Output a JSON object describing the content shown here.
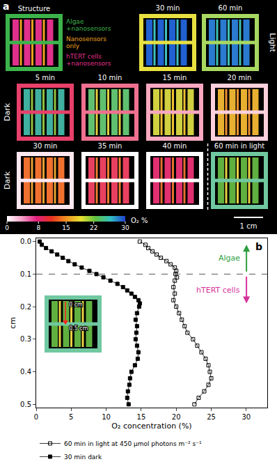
{
  "panel_a": {
    "label": "a",
    "structure": {
      "title": "Structure",
      "colors": {
        "algae": "#3cb44b",
        "sensors": "#f0a020",
        "cells": "#e0308c"
      },
      "key": [
        {
          "lines": [
            "Algae",
            "+nanosensors"
          ],
          "color": "#3cb44b"
        },
        {
          "lines": [
            "Nanosensors",
            "only"
          ],
          "color": "#f0a020"
        },
        {
          "lines": [
            "hTERT cells",
            "+nanosensors"
          ],
          "color": "#e0308c"
        }
      ]
    },
    "rows": [
      {
        "label": "Light",
        "tiles": [
          {
            "title": "30 min",
            "colors": {
              "algae": "#e8e040",
              "sensors": "#40c0c0",
              "cells": "#2060d0"
            }
          },
          {
            "title": "60 min",
            "colors": {
              "algae": "#a8d860",
              "sensors": "#40c0b0",
              "cells": "#2a7ad0"
            }
          }
        ]
      },
      {
        "label": "Dark",
        "tiles": [
          {
            "title": "5 min",
            "colors": {
              "algae": "#e8406a",
              "sensors": "#90c040",
              "cells": "#40b0a0"
            }
          },
          {
            "title": "10 min",
            "colors": {
              "algae": "#f07090",
              "sensors": "#e0d040",
              "cells": "#60c070"
            }
          },
          {
            "title": "15 min",
            "colors": {
              "algae": "#f8a8c0",
              "sensors": "#f0c030",
              "cells": "#d0d040"
            }
          },
          {
            "title": "20 min",
            "colors": {
              "algae": "#fcd0dc",
              "sensors": "#f09030",
              "cells": "#e8b030"
            }
          }
        ]
      },
      {
        "label": "Dark",
        "tiles": [
          {
            "title": "30 min",
            "colors": {
              "algae": "#ffe8f0",
              "sensors": "#e8a030",
              "cells": "#f07030"
            }
          },
          {
            "title": "35 min",
            "colors": {
              "algae": "#ffffff",
              "sensors": "#f08030",
              "cells": "#e84060"
            }
          },
          {
            "title": "40 min",
            "colors": {
              "algae": "#ffffff",
              "sensors": "#e87030",
              "cells": "#e03070"
            }
          },
          {
            "title": "60 min in light",
            "colors": {
              "algae": "#70c8a0",
              "sensors": "#e8d040",
              "cells": "#60b040"
            }
          }
        ]
      }
    ],
    "colorbar": {
      "range": [
        0,
        30
      ],
      "ticks": [
        0,
        8,
        15,
        22,
        30
      ],
      "label": "O₂ %"
    },
    "scale_bar": "1 cm"
  },
  "inset": {
    "top_label": "0 cm",
    "bottom_label": "0.5 cm",
    "colors": {
      "algae": "#70c8a0",
      "sensors": "#e8d040",
      "cells": "#60b040"
    }
  },
  "chart_data": {
    "type": "scatter",
    "label": "b",
    "xlabel": "O₂ concentration (%)",
    "ylabel": "cm",
    "xlim": [
      0,
      33
    ],
    "xticks": [
      0,
      5,
      10,
      15,
      20,
      25,
      30
    ],
    "ylim": [
      0.51,
      -0.01
    ],
    "yticks": [
      {
        "value": 0,
        "label": "0.0"
      },
      0.1,
      0.2,
      0.3,
      0.4,
      0.5
    ],
    "grid": false,
    "legend": "bottom",
    "boundary_y": 0.1,
    "annotations": [
      {
        "text": "Algae",
        "color": "#2e9e3e",
        "direction": "up"
      },
      {
        "text": "hTERT cells",
        "color": "#d6339a",
        "direction": "down"
      }
    ],
    "series": [
      {
        "name": "60 min in light at 450 µmol photons m⁻² s⁻¹",
        "color": "#000000",
        "marker": "square-open",
        "line_style": "solid",
        "x": [
          14.8,
          15.6,
          16.0,
          16.6,
          17.2,
          17.8,
          18.6,
          19.2,
          19.8,
          20.0,
          19.9,
          20.1,
          19.8,
          19.6,
          19.8,
          19.6,
          20.0,
          20.4,
          20.8,
          21.2,
          21.6,
          22.4,
          23.0,
          23.6,
          24.2,
          24.6,
          24.8,
          25.0,
          24.6,
          24.0,
          23.2,
          22.6
        ],
        "y": [
          0.0,
          0.01,
          0.02,
          0.03,
          0.04,
          0.05,
          0.06,
          0.07,
          0.08,
          0.09,
          0.1,
          0.11,
          0.12,
          0.14,
          0.16,
          0.18,
          0.2,
          0.22,
          0.24,
          0.26,
          0.28,
          0.3,
          0.32,
          0.34,
          0.36,
          0.38,
          0.4,
          0.42,
          0.44,
          0.46,
          0.48,
          0.5
        ]
      },
      {
        "name": "30 min dark",
        "color": "#000000",
        "marker": "square",
        "line_style": "solid",
        "x": [
          0.5,
          0.8,
          1.4,
          2.2,
          3.0,
          3.8,
          4.6,
          5.5,
          6.5,
          7.6,
          8.6,
          9.6,
          10.6,
          11.6,
          12.4,
          13.0,
          13.6,
          14.1,
          14.6,
          14.8,
          14.7,
          14.4,
          14.2,
          14.4,
          14.3,
          14.2,
          14.4,
          14.6,
          14.5,
          14.1,
          13.6,
          13.4,
          13.3,
          13.1,
          13.0,
          13.2
        ],
        "y": [
          0.0,
          0.01,
          0.02,
          0.03,
          0.04,
          0.05,
          0.06,
          0.07,
          0.08,
          0.09,
          0.1,
          0.11,
          0.12,
          0.13,
          0.14,
          0.15,
          0.16,
          0.17,
          0.18,
          0.19,
          0.2,
          0.22,
          0.24,
          0.26,
          0.28,
          0.3,
          0.32,
          0.34,
          0.36,
          0.38,
          0.4,
          0.42,
          0.44,
          0.46,
          0.48,
          0.5
        ]
      }
    ]
  }
}
